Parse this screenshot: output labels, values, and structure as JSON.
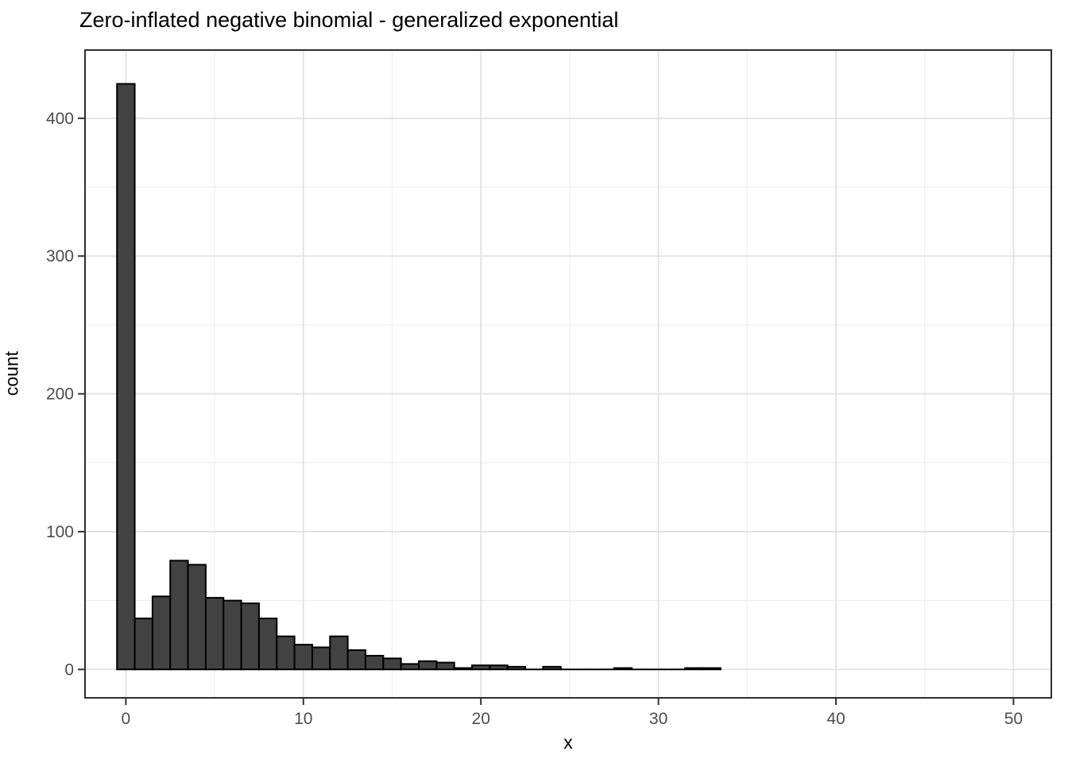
{
  "title": "Zero-inflated negative binomial - generalized exponential",
  "axes": {
    "x_title": "x",
    "y_title": "count"
  },
  "chart_data": {
    "type": "bar",
    "subtype": "histogram",
    "title": "Zero-inflated negative binomial - generalized exponential",
    "xlabel": "x",
    "ylabel": "count",
    "binwidth": 1,
    "bin_centers": [
      0,
      1,
      2,
      3,
      4,
      5,
      6,
      7,
      8,
      9,
      10,
      11,
      12,
      13,
      14,
      15,
      16,
      17,
      18,
      19,
      20,
      21,
      22,
      23,
      24,
      25,
      26,
      27,
      28,
      29,
      30,
      31,
      32,
      33
    ],
    "counts": [
      425,
      37,
      53,
      79,
      76,
      52,
      50,
      48,
      37,
      24,
      18,
      16,
      24,
      14,
      10,
      8,
      4,
      6,
      5,
      1,
      3,
      3,
      2,
      0,
      2,
      0,
      0,
      0,
      1,
      0,
      0,
      0,
      1,
      1
    ],
    "n_total": 1000,
    "x_major_ticks": [
      0,
      10,
      20,
      30,
      40,
      50
    ],
    "x_tick_labels": [
      "0",
      "10",
      "20",
      "30",
      "40",
      "50"
    ],
    "x_minor_gridlines": [
      5,
      15,
      25,
      35,
      45
    ],
    "y_major_ticks": [
      0,
      100,
      200,
      300,
      400
    ],
    "y_tick_labels": [
      "0",
      "100",
      "200",
      "300",
      "400"
    ],
    "y_minor_gridlines": [
      50,
      150,
      250,
      350
    ],
    "xlim": [
      -2.3,
      52.13
    ],
    "ylim": [
      -20.6,
      449.5
    ],
    "grid": true,
    "legend": "none",
    "colors": {
      "bar_fill": "#424242",
      "bar_stroke": "#000000",
      "major_grid": "#e2e2e2",
      "minor_grid": "#ededed",
      "panel_border": "#2e2e2e",
      "tick_mark": "#333333",
      "tick_label": "#4d4d4d",
      "text": "#000000",
      "background": "#ffffff"
    }
  }
}
